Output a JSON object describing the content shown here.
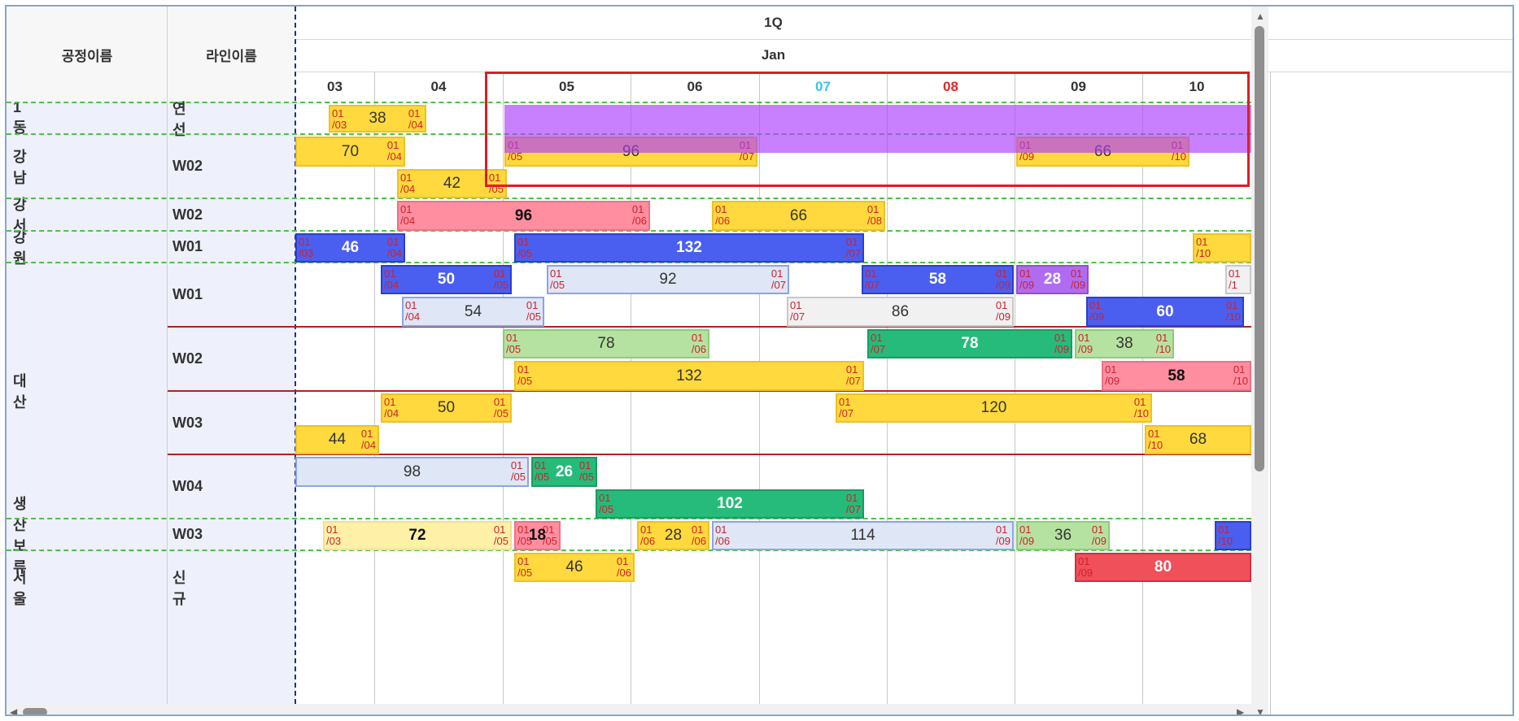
{
  "header": {
    "col_process": "공정이름",
    "col_line": "라인이름",
    "quarter": "1Q",
    "month": "Jan",
    "days": [
      {
        "label": "03",
        "color": "#333333"
      },
      {
        "label": "04",
        "color": "#333333"
      },
      {
        "label": "05",
        "color": "#333333"
      },
      {
        "label": "06",
        "color": "#333333"
      },
      {
        "label": "07",
        "color": "#3cc3e8"
      },
      {
        "label": "08",
        "color": "#e0282a"
      },
      {
        "label": "09",
        "color": "#333333"
      },
      {
        "label": "10",
        "color": "#333333"
      }
    ]
  },
  "rows": [
    {
      "process": "1동",
      "line": "연선"
    },
    {
      "process": "강남",
      "line": "W02"
    },
    {
      "process": "강서",
      "line": "W02"
    },
    {
      "process": "강원",
      "line": "W01"
    },
    {
      "process": "대산",
      "line": "W01"
    },
    {
      "process": "",
      "line": "W02"
    },
    {
      "process": "",
      "line": "W03"
    },
    {
      "process": "",
      "line": "W04"
    },
    {
      "process": "생산보류",
      "line": "W03"
    },
    {
      "process": "서울",
      "line": "신규"
    }
  ],
  "bars": [
    {
      "s": "01\n/03",
      "e": "01\n/04",
      "q": "38"
    },
    {
      "s": "",
      "e": "01\n/04",
      "q": "70"
    },
    {
      "s": "01\n/05",
      "e": "01\n/07",
      "q": "96"
    },
    {
      "s": "01\n/09",
      "e": "01\n/10",
      "q": "66"
    },
    {
      "s": "01\n/04",
      "e": "01\n/05",
      "q": "42"
    },
    {
      "s": "01\n/04",
      "e": "01\n/06",
      "q": "96"
    },
    {
      "s": "01\n/06",
      "e": "01\n/08",
      "q": "66"
    },
    {
      "s": "01\n/03",
      "e": "01\n/04",
      "q": "46"
    },
    {
      "s": "01\n/05",
      "e": "01\n/07",
      "q": "132"
    },
    {
      "s": "01\n/10",
      "e": "",
      "q": ""
    },
    {
      "s": "01\n/04",
      "e": "01\n/05",
      "q": "50"
    },
    {
      "s": "01\n/05",
      "e": "01\n/07",
      "q": "92"
    },
    {
      "s": "01\n/07",
      "e": "01\n/09",
      "q": "58"
    },
    {
      "s": "01\n/09",
      "e": "01\n/09",
      "q": "28"
    },
    {
      "s": "01\n/1",
      "e": "",
      "q": ""
    },
    {
      "s": "01\n/04",
      "e": "01\n/05",
      "q": "54"
    },
    {
      "s": "01\n/07",
      "e": "01\n/09",
      "q": "86"
    },
    {
      "s": "01\n/09",
      "e": "01\n/10",
      "q": "60"
    },
    {
      "s": "01\n/05",
      "e": "01\n/06",
      "q": "78"
    },
    {
      "s": "01\n/07",
      "e": "01\n/09",
      "q": "78"
    },
    {
      "s": "01\n/09",
      "e": "01\n/10",
      "q": "38"
    },
    {
      "s": "01\n/05",
      "e": "01\n/07",
      "q": "132"
    },
    {
      "s": "01\n/09",
      "e": "01\n/10",
      "q": "58"
    },
    {
      "s": "01\n/04",
      "e": "01\n/05",
      "q": "50"
    },
    {
      "s": "01\n/07",
      "e": "01\n/10",
      "q": "120"
    },
    {
      "s": "",
      "e": "01\n/04",
      "q": "44"
    },
    {
      "s": "01\n/10",
      "e": "",
      "q": "68"
    },
    {
      "s": "",
      "e": "01\n/05",
      "q": "98"
    },
    {
      "s": "01\n/05",
      "e": "01\n/05",
      "q": "26"
    },
    {
      "s": "01\n/05",
      "e": "01\n/07",
      "q": "102"
    },
    {
      "s": "01\n/03",
      "e": "01\n/05",
      "q": "72"
    },
    {
      "s": "01\n/05",
      "e": "01\n/05",
      "q": "18"
    },
    {
      "s": "01\n/06",
      "e": "01\n/06",
      "q": "28"
    },
    {
      "s": "01\n/06",
      "e": "01\n/09",
      "q": "114"
    },
    {
      "s": "01\n/09",
      "e": "01\n/09",
      "q": "36"
    },
    {
      "s": "01\n/10",
      "e": "",
      "q": ""
    },
    {
      "s": "01\n/05",
      "e": "01\n/06",
      "q": "46"
    },
    {
      "s": "01\n/09",
      "e": "",
      "q": "80"
    }
  ],
  "colors": {
    "yellow": "#ffd93d",
    "pink": "#ff8fa0",
    "blue": "#4a5ff0",
    "lightblue": "#dfe6f5",
    "purple": "#b06cf0",
    "lightgreen": "#b6e2a1",
    "green": "#26bb7a",
    "paleyellow": "#fff0a8",
    "lightgray": "#f1f1f1",
    "red": "#f0505a",
    "overlay": "#aa3cff",
    "highlight": "#e01b24"
  }
}
